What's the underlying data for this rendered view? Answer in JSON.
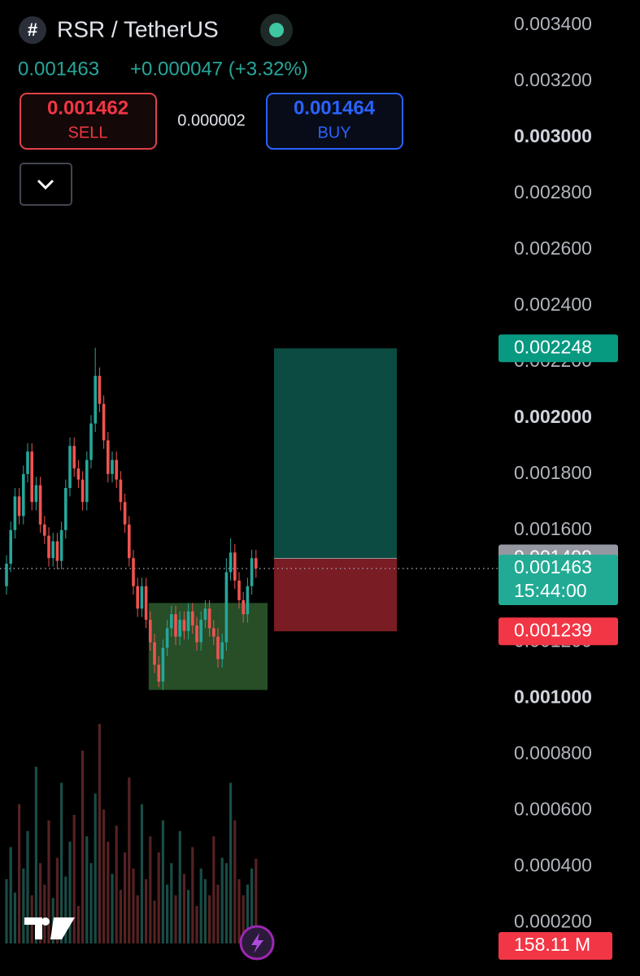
{
  "header": {
    "symbol": "RSR / TetherUS",
    "price": "0.001463",
    "change": "+0.000047 (+3.32%)",
    "sell_price": "0.001462",
    "sell_label": "SELL",
    "spread": "0.000002",
    "buy_price": "0.001464",
    "buy_label": "BUY"
  },
  "chart_data": {
    "type": "candlestick",
    "ylim": [
      1e-05,
      0.00349
    ],
    "yticks": [
      {
        "value": 0.0034,
        "label": "0.003400"
      },
      {
        "value": 0.0032,
        "label": "0.003200"
      },
      {
        "value": 0.003,
        "label": "0.003000"
      },
      {
        "value": 0.0028,
        "label": "0.002800"
      },
      {
        "value": 0.0026,
        "label": "0.002600"
      },
      {
        "value": 0.0024,
        "label": "0.002400"
      },
      {
        "value": 0.0022,
        "label": "0.002200"
      },
      {
        "value": 0.002,
        "label": "0.002000"
      },
      {
        "value": 0.0018,
        "label": "0.001800"
      },
      {
        "value": 0.0016,
        "label": "0.001600"
      },
      {
        "value": 0.0014,
        "label": "0.001400"
      },
      {
        "value": 0.0012,
        "label": "0.001200"
      },
      {
        "value": 0.001,
        "label": "0.001000"
      },
      {
        "value": 0.0008,
        "label": "0.000800"
      },
      {
        "value": 0.0006,
        "label": "0.000600"
      },
      {
        "value": 0.0004,
        "label": "0.000400"
      },
      {
        "value": 0.0002,
        "label": "0.000200"
      }
    ],
    "up_color": "#26a69a",
    "down_color": "#ef5350",
    "open": [
      0.0014,
      0.00148,
      0.0016,
      0.00172,
      0.00165,
      0.0018,
      0.00188,
      0.0017,
      0.00176,
      0.00162,
      0.00158,
      0.0015,
      0.00156,
      0.00149,
      0.0016,
      0.00175,
      0.0019,
      0.00182,
      0.00178,
      0.0017,
      0.00185,
      0.00198,
      0.00215,
      0.00205,
      0.00192,
      0.0018,
      0.00185,
      0.00178,
      0.0017,
      0.00162,
      0.0015,
      0.0014,
      0.00132,
      0.0014,
      0.00128,
      0.0012,
      0.00112,
      0.00106,
      0.00118,
      0.00125,
      0.0013,
      0.00122,
      0.00128,
      0.00124,
      0.00131,
      0.00126,
      0.0012,
      0.00128,
      0.00132,
      0.00125,
      0.00122,
      0.00114,
      0.0012,
      0.00145,
      0.00152,
      0.00142,
      0.00135,
      0.0013,
      0.0014,
      0.0015
    ],
    "high": [
      0.00151,
      0.00163,
      0.00175,
      0.00175,
      0.00183,
      0.00191,
      0.00191,
      0.00179,
      0.00179,
      0.00165,
      0.00161,
      0.00159,
      0.00159,
      0.00163,
      0.00178,
      0.00193,
      0.00193,
      0.00185,
      0.00181,
      0.00188,
      0.00201,
      0.00225,
      0.00218,
      0.00208,
      0.00195,
      0.00188,
      0.00188,
      0.00181,
      0.00173,
      0.00165,
      0.00153,
      0.00143,
      0.00143,
      0.00143,
      0.00131,
      0.00123,
      0.00115,
      0.00121,
      0.00128,
      0.00133,
      0.00133,
      0.00131,
      0.00131,
      0.00134,
      0.00134,
      0.00129,
      0.00131,
      0.00135,
      0.00135,
      0.00128,
      0.00125,
      0.00123,
      0.0015,
      0.00157,
      0.00155,
      0.00145,
      0.00138,
      0.00143,
      0.00153,
      0.00153
    ],
    "low": [
      0.00137,
      0.00145,
      0.00157,
      0.00162,
      0.00162,
      0.00177,
      0.00167,
      0.00167,
      0.00159,
      0.00155,
      0.00147,
      0.00147,
      0.00146,
      0.00146,
      0.00157,
      0.00172,
      0.00179,
      0.00175,
      0.00167,
      0.00167,
      0.00182,
      0.00195,
      0.00202,
      0.00189,
      0.00177,
      0.00177,
      0.00175,
      0.00167,
      0.00159,
      0.00147,
      0.00137,
      0.00129,
      0.00129,
      0.00125,
      0.00117,
      0.00109,
      0.00104,
      0.00103,
      0.00115,
      0.00122,
      0.00119,
      0.00119,
      0.00121,
      0.00121,
      0.00123,
      0.00117,
      0.00117,
      0.00125,
      0.00122,
      0.00119,
      0.00111,
      0.00111,
      0.00117,
      0.00142,
      0.00139,
      0.00132,
      0.00127,
      0.00127,
      0.00137,
      0.00143
    ],
    "close": [
      0.00148,
      0.0016,
      0.00172,
      0.00165,
      0.0018,
      0.00188,
      0.0017,
      0.00176,
      0.00162,
      0.00158,
      0.0015,
      0.00156,
      0.00149,
      0.0016,
      0.00175,
      0.0019,
      0.00182,
      0.00178,
      0.0017,
      0.00185,
      0.00198,
      0.00215,
      0.00205,
      0.00192,
      0.0018,
      0.00185,
      0.00178,
      0.0017,
      0.00162,
      0.0015,
      0.0014,
      0.00132,
      0.0014,
      0.00128,
      0.0012,
      0.00112,
      0.00106,
      0.00118,
      0.00125,
      0.0013,
      0.00122,
      0.00128,
      0.00124,
      0.00131,
      0.00126,
      0.0012,
      0.00128,
      0.00132,
      0.00125,
      0.00122,
      0.00114,
      0.0012,
      0.00145,
      0.00152,
      0.00142,
      0.00135,
      0.0013,
      0.0014,
      0.0015,
      0.001463
    ],
    "volume": [
      120,
      180,
      95,
      260,
      140,
      210,
      90,
      330,
      150,
      110,
      230,
      85,
      160,
      300,
      125,
      190,
      240,
      70,
      360,
      200,
      150,
      280,
      410,
      250,
      190,
      130,
      220,
      100,
      170,
      310,
      140,
      90,
      260,
      120,
      200,
      80,
      170,
      230,
      110,
      150,
      90,
      210,
      130,
      100,
      180,
      70,
      140,
      120,
      90,
      200,
      110,
      160,
      150,
      300,
      230,
      120,
      90,
      110,
      140,
      158.11
    ],
    "volume_tag": {
      "value": 158.11,
      "label": "158.11 M"
    },
    "zone": [
      0.00134,
      0.00103
    ],
    "zone_color": "#2e5c2e",
    "position": {
      "target": 0.002248,
      "entry": 0.001499,
      "stop": 0.001239,
      "profit_color": "#0b4b42",
      "loss_color": "#7a1c23"
    },
    "last_price": 0.001463,
    "countdown": "15:44:00"
  }
}
